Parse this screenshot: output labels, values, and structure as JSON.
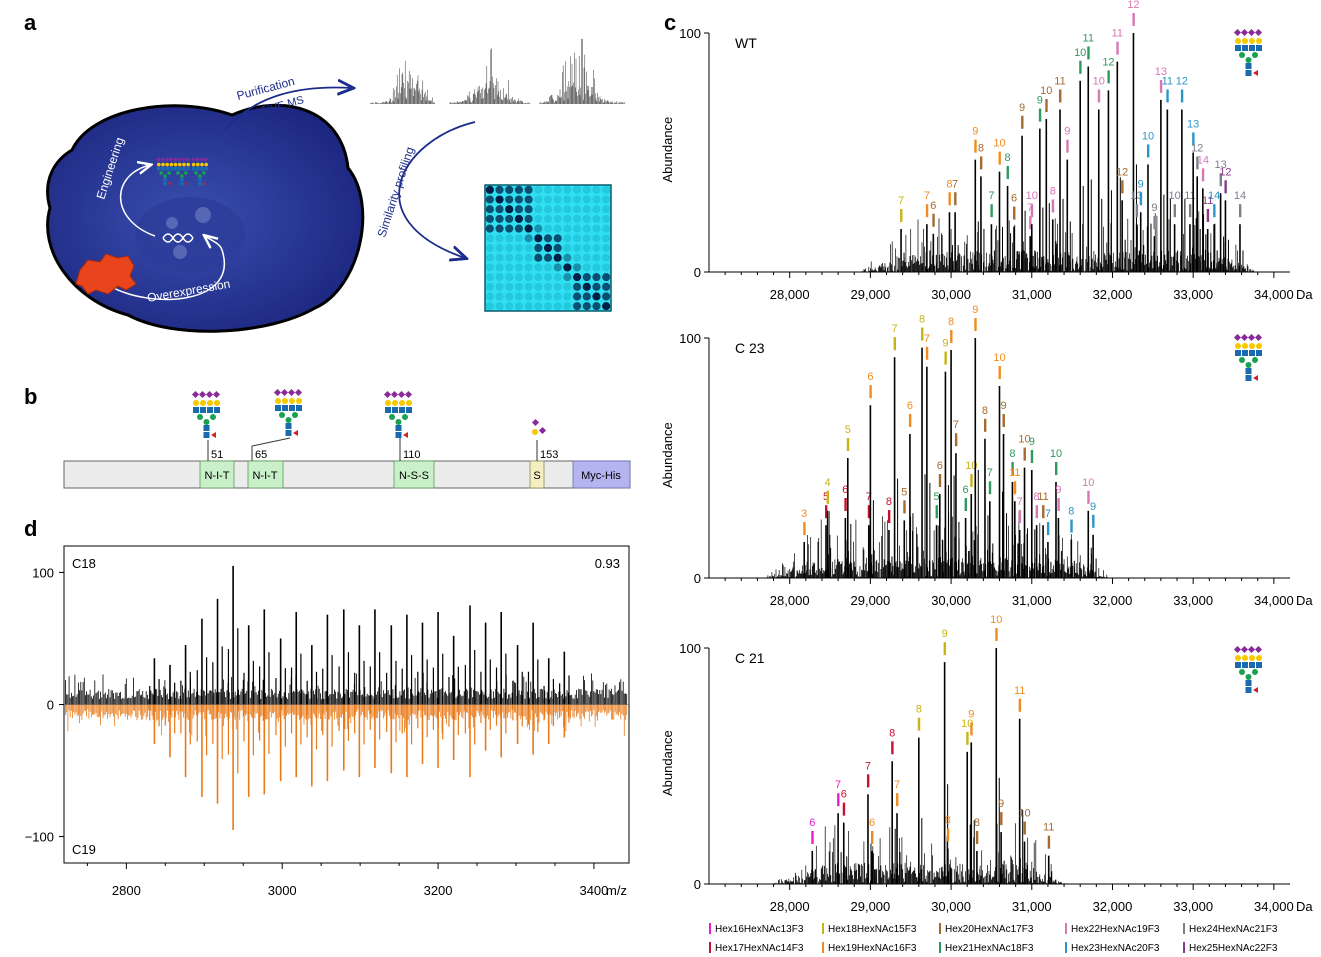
{
  "panel_labels": [
    "a",
    "b",
    "c",
    "d"
  ],
  "panel_a": {
    "arrow_top": "Purification",
    "arrow_top_2": "NATIVE MS",
    "arrow_right": "Similarity profiling",
    "engineering": "Engineering",
    "overexpression": "Overexpression"
  },
  "panel_b": {
    "sites": [
      {
        "pos": "51",
        "motif": "N-I-T"
      },
      {
        "pos": "65",
        "motif": "N-I-T"
      },
      {
        "pos": "110",
        "motif": "N-S-S"
      },
      {
        "pos": "153",
        "motif": "S"
      }
    ],
    "tag": "Myc-His"
  },
  "legend": [
    {
      "label": "Hex16HexNAc13F3",
      "color": "#e91ec8"
    },
    {
      "label": "Hex18HexNAc15F3",
      "color": "#c8b414"
    },
    {
      "label": "Hex20HexNAc17F3",
      "color": "#a66a2e"
    },
    {
      "label": "Hex22HexNAc19F3",
      "color": "#d678b4"
    },
    {
      "label": "Hex24HexNAc21F3",
      "color": "#7b7f8a"
    },
    {
      "label": "Hex17HexNAc14F3",
      "color": "#c8102e"
    },
    {
      "label": "Hex19HexNAc16F3",
      "color": "#f08c1e"
    },
    {
      "label": "Hex21HexNAc18F3",
      "color": "#2e9a5a"
    },
    {
      "label": "Hex23HexNAc20F3",
      "color": "#2a95c8"
    },
    {
      "label": "Hex25HexNAc22F3",
      "color": "#8a3a8c"
    }
  ],
  "chart_data": [
    {
      "type": "line",
      "panel": "c",
      "sample": "WT",
      "ylabel": "Abundance",
      "xunit": "Da",
      "xlim": [
        27000,
        34200
      ],
      "ylim": [
        0,
        100
      ],
      "yticks": [
        "0",
        "100"
      ],
      "xticks": [
        "28,000",
        "29,000",
        "30,000",
        "31,000",
        "32,000",
        "33,000",
        "34,000"
      ],
      "peaks": [
        {
          "x": 29380,
          "y": 18,
          "label": "7",
          "c": 1
        },
        {
          "x": 29700,
          "y": 20,
          "label": "7",
          "c": 6
        },
        {
          "x": 29780,
          "y": 16,
          "label": "6",
          "c": 2
        },
        {
          "x": 29980,
          "y": 25,
          "label": "8",
          "c": 6
        },
        {
          "x": 30050,
          "y": 25,
          "label": "7",
          "c": 2
        },
        {
          "x": 30300,
          "y": 47,
          "label": "9",
          "c": 6
        },
        {
          "x": 30370,
          "y": 40,
          "label": "8",
          "c": 2
        },
        {
          "x": 30500,
          "y": 20,
          "label": "7",
          "c": 7
        },
        {
          "x": 30600,
          "y": 42,
          "label": "10",
          "c": 6
        },
        {
          "x": 30700,
          "y": 36,
          "label": "8",
          "c": 7
        },
        {
          "x": 30780,
          "y": 19,
          "label": "6",
          "c": 2
        },
        {
          "x": 30880,
          "y": 57,
          "label": "9",
          "c": 2
        },
        {
          "x": 30980,
          "y": 15,
          "label": "7",
          "c": 3
        },
        {
          "x": 31000,
          "y": 20,
          "label": "10",
          "c": 3
        },
        {
          "x": 31100,
          "y": 60,
          "label": "9",
          "c": 7
        },
        {
          "x": 31180,
          "y": 64,
          "label": "10",
          "c": 2
        },
        {
          "x": 31260,
          "y": 22,
          "label": "8",
          "c": 3
        },
        {
          "x": 31350,
          "y": 68,
          "label": "11",
          "c": 2
        },
        {
          "x": 31440,
          "y": 47,
          "label": "9",
          "c": 3
        },
        {
          "x": 31600,
          "y": 80,
          "label": "10",
          "c": 7
        },
        {
          "x": 31700,
          "y": 86,
          "label": "11",
          "c": 7
        },
        {
          "x": 31830,
          "y": 68,
          "label": "10",
          "c": 3
        },
        {
          "x": 31950,
          "y": 76,
          "label": "12",
          "c": 7
        },
        {
          "x": 32060,
          "y": 88,
          "label": "11",
          "c": 3
        },
        {
          "x": 32120,
          "y": 30,
          "label": "12",
          "c": 2
        },
        {
          "x": 32260,
          "y": 100,
          "label": "12",
          "c": 3
        },
        {
          "x": 32300,
          "y": 20,
          "label": "13",
          "c": 4
        },
        {
          "x": 32350,
          "y": 25,
          "label": "9",
          "c": 8
        },
        {
          "x": 32440,
          "y": 45,
          "label": "10",
          "c": 8
        },
        {
          "x": 32520,
          "y": 15,
          "label": "9",
          "c": 4
        },
        {
          "x": 32600,
          "y": 72,
          "label": "13",
          "c": 3
        },
        {
          "x": 32680,
          "y": 68,
          "label": "11",
          "c": 8
        },
        {
          "x": 32770,
          "y": 20,
          "label": "10",
          "c": 4
        },
        {
          "x": 32860,
          "y": 68,
          "label": "12",
          "c": 8
        },
        {
          "x": 32960,
          "y": 20,
          "label": "11",
          "c": 4
        },
        {
          "x": 33000,
          "y": 50,
          "label": "13",
          "c": 8
        },
        {
          "x": 33050,
          "y": 40,
          "label": "12",
          "c": 4
        },
        {
          "x": 33120,
          "y": 35,
          "label": "14",
          "c": 3
        },
        {
          "x": 33180,
          "y": 18,
          "label": "11",
          "c": 9
        },
        {
          "x": 33260,
          "y": 20,
          "label": "14",
          "c": 8
        },
        {
          "x": 33340,
          "y": 33,
          "label": "13",
          "c": 4
        },
        {
          "x": 33400,
          "y": 30,
          "label": "12",
          "c": 9
        },
        {
          "x": 33580,
          "y": 20,
          "label": "14",
          "c": 4
        }
      ]
    },
    {
      "type": "line",
      "panel": "c",
      "sample": "C 23",
      "ylabel": "Abundance",
      "xunit": "Da",
      "xlim": [
        27000,
        34200
      ],
      "ylim": [
        0,
        100
      ],
      "yticks": [
        "0",
        "100"
      ],
      "xticks": [
        "28,000",
        "29,000",
        "30,000",
        "31,000",
        "32,000",
        "33,000",
        "34,000"
      ],
      "peaks": [
        {
          "x": 28180,
          "y": 15,
          "label": "3",
          "c": 6
        },
        {
          "x": 28450,
          "y": 22,
          "label": "5",
          "c": 5
        },
        {
          "x": 28470,
          "y": 28,
          "label": "4",
          "c": 1
        },
        {
          "x": 28690,
          "y": 25,
          "label": "6",
          "c": 5
        },
        {
          "x": 28720,
          "y": 50,
          "label": "5",
          "c": 1
        },
        {
          "x": 28980,
          "y": 22,
          "label": "7",
          "c": 5
        },
        {
          "x": 29000,
          "y": 72,
          "label": "6",
          "c": 6
        },
        {
          "x": 29230,
          "y": 20,
          "label": "8",
          "c": 5
        },
        {
          "x": 29300,
          "y": 92,
          "label": "7",
          "c": 1
        },
        {
          "x": 29420,
          "y": 24,
          "label": "5",
          "c": 2
        },
        {
          "x": 29490,
          "y": 60,
          "label": "6",
          "c": 6
        },
        {
          "x": 29640,
          "y": 96,
          "label": "8",
          "c": 1
        },
        {
          "x": 29700,
          "y": 88,
          "label": "7",
          "c": 6
        },
        {
          "x": 29820,
          "y": 22,
          "label": "5",
          "c": 7
        },
        {
          "x": 29860,
          "y": 35,
          "label": "6",
          "c": 2
        },
        {
          "x": 29930,
          "y": 86,
          "label": "9",
          "c": 1
        },
        {
          "x": 30000,
          "y": 95,
          "label": "8",
          "c": 6
        },
        {
          "x": 30060,
          "y": 52,
          "label": "7",
          "c": 2
        },
        {
          "x": 30180,
          "y": 25,
          "label": "6",
          "c": 7
        },
        {
          "x": 30250,
          "y": 35,
          "label": "10",
          "c": 1
        },
        {
          "x": 30300,
          "y": 100,
          "label": "9",
          "c": 6
        },
        {
          "x": 30420,
          "y": 58,
          "label": "8",
          "c": 2
        },
        {
          "x": 30480,
          "y": 32,
          "label": "7",
          "c": 7
        },
        {
          "x": 30600,
          "y": 80,
          "label": "10",
          "c": 6
        },
        {
          "x": 30650,
          "y": 60,
          "label": "9",
          "c": 2
        },
        {
          "x": 30760,
          "y": 40,
          "label": "8",
          "c": 7
        },
        {
          "x": 30790,
          "y": 32,
          "label": "11",
          "c": 6
        },
        {
          "x": 30850,
          "y": 20,
          "label": "7",
          "c": 3
        },
        {
          "x": 30910,
          "y": 46,
          "label": "10",
          "c": 2
        },
        {
          "x": 31000,
          "y": 45,
          "label": "9",
          "c": 7
        },
        {
          "x": 31060,
          "y": 22,
          "label": "8",
          "c": 3
        },
        {
          "x": 31140,
          "y": 22,
          "label": "11",
          "c": 2
        },
        {
          "x": 31200,
          "y": 15,
          "label": "7",
          "c": 8
        },
        {
          "x": 31300,
          "y": 40,
          "label": "10",
          "c": 7
        },
        {
          "x": 31330,
          "y": 25,
          "label": "9",
          "c": 3
        },
        {
          "x": 31490,
          "y": 16,
          "label": "8",
          "c": 8
        },
        {
          "x": 31700,
          "y": 28,
          "label": "10",
          "c": 3
        },
        {
          "x": 31760,
          "y": 18,
          "label": "9",
          "c": 8
        }
      ]
    },
    {
      "type": "line",
      "panel": "c",
      "sample": "C 21",
      "ylabel": "Abundance",
      "xunit": "Da",
      "xlim": [
        27000,
        34200
      ],
      "ylim": [
        0,
        100
      ],
      "yticks": [
        "0",
        "100"
      ],
      "xticks": [
        "28,000",
        "29,000",
        "30,000",
        "31,000",
        "32,000",
        "33,000",
        "34,000"
      ],
      "peaks": [
        {
          "x": 28280,
          "y": 14,
          "label": "6",
          "c": 0
        },
        {
          "x": 28600,
          "y": 30,
          "label": "7",
          "c": 0
        },
        {
          "x": 28670,
          "y": 26,
          "label": "6",
          "c": 5
        },
        {
          "x": 28970,
          "y": 38,
          "label": "7",
          "c": 5
        },
        {
          "x": 29020,
          "y": 14,
          "label": "6",
          "c": 6
        },
        {
          "x": 29270,
          "y": 52,
          "label": "8",
          "c": 5
        },
        {
          "x": 29330,
          "y": 30,
          "label": "7",
          "c": 6
        },
        {
          "x": 29600,
          "y": 62,
          "label": "8",
          "c": 1
        },
        {
          "x": 29920,
          "y": 94,
          "label": "9",
          "c": 1
        },
        {
          "x": 29960,
          "y": 15,
          "label": "8",
          "c": 6
        },
        {
          "x": 30200,
          "y": 56,
          "label": "10",
          "c": 1
        },
        {
          "x": 30250,
          "y": 60,
          "label": "9",
          "c": 6
        },
        {
          "x": 30320,
          "y": 14,
          "label": "8",
          "c": 2
        },
        {
          "x": 30560,
          "y": 100,
          "label": "10",
          "c": 6
        },
        {
          "x": 30620,
          "y": 22,
          "label": "9",
          "c": 2
        },
        {
          "x": 30850,
          "y": 70,
          "label": "11",
          "c": 6
        },
        {
          "x": 30910,
          "y": 18,
          "label": "10",
          "c": 2
        },
        {
          "x": 31210,
          "y": 12,
          "label": "11",
          "c": 2
        }
      ]
    },
    {
      "type": "line",
      "panel": "d",
      "top_sample": "C18",
      "bottom_sample": "C19",
      "score": "0.93",
      "xunit": "m/z",
      "xlim": [
        2720,
        3445
      ],
      "ylim": [
        -120,
        120
      ],
      "yticks": [
        100,
        0,
        -100
      ],
      "ytick_labels": [
        "100",
        "0",
        "−100"
      ],
      "xticks": [
        2800,
        3000,
        3200,
        3400
      ],
      "xtick_labels": [
        "2800",
        "3000",
        "3200",
        "3400"
      ],
      "series": [
        {
          "name": "C18",
          "color": "#000000",
          "peaks_x": [
            2836,
            2856,
            2876,
            2897,
            2917,
            2937,
            2957,
            2977,
            2998,
            3018,
            3038,
            3058,
            3079,
            3099,
            3119,
            3140,
            3160,
            3180,
            3200,
            3220,
            3241,
            3261,
            3281,
            3302,
            3322,
            3342,
            3362
          ],
          "peaks_y": [
            35,
            30,
            45,
            65,
            80,
            105,
            60,
            72,
            50,
            70,
            45,
            68,
            72,
            60,
            72,
            60,
            68,
            62,
            70,
            52,
            75,
            62,
            70,
            45,
            62,
            35,
            40
          ]
        },
        {
          "name": "C19",
          "color": "#e87a1a",
          "peaks_x": [
            2836,
            2856,
            2876,
            2897,
            2917,
            2937,
            2957,
            2977,
            2998,
            3018,
            3038,
            3058,
            3079,
            3099,
            3119,
            3140,
            3160,
            3180,
            3200,
            3220,
            3241,
            3261,
            3281,
            3302,
            3322,
            3342,
            3362
          ],
          "peaks_y": [
            -30,
            -40,
            -55,
            -70,
            -75,
            -95,
            -70,
            -68,
            -58,
            -55,
            -62,
            -58,
            -50,
            -55,
            -48,
            -52,
            -55,
            -45,
            -48,
            -42,
            -55,
            -35,
            -40,
            -30,
            -38,
            -30,
            -25
          ]
        }
      ]
    }
  ]
}
